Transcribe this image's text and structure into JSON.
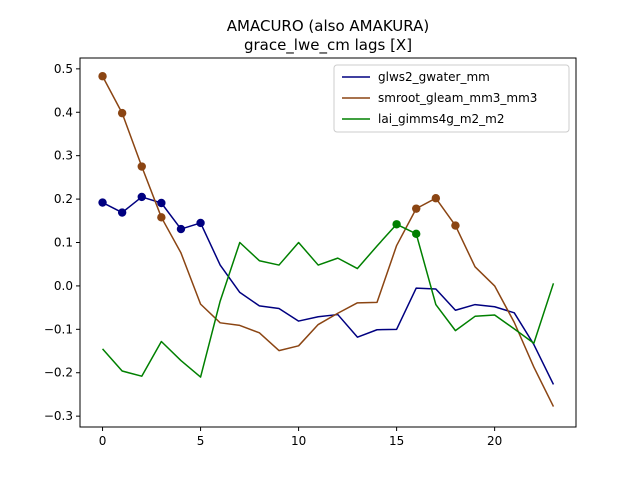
{
  "chart_data": {
    "type": "line",
    "title": "AMACURO (also AMAKURA)",
    "subtitle": "grace_lwe_cm lags [X]",
    "xlabel": "",
    "ylabel": "",
    "xlim": [
      -1.15,
      24.15
    ],
    "ylim": [
      -0.325,
      0.525
    ],
    "x_ticks": [
      0,
      5,
      10,
      15,
      20
    ],
    "y_ticks": [
      0.5,
      0.4,
      0.3,
      0.2,
      0.1,
      0.0,
      -0.1,
      -0.2,
      -0.3
    ],
    "x_tick_labels": [
      "0",
      "5",
      "10",
      "15",
      "20"
    ],
    "y_tick_labels": [
      "0.5",
      "0.4",
      "0.3",
      "0.2",
      "0.1",
      "0.0",
      "−0.1",
      "−0.2",
      "−0.3"
    ],
    "grid": false,
    "legend_position": "top-right",
    "x": [
      0,
      1,
      2,
      3,
      4,
      5,
      6,
      7,
      8,
      9,
      10,
      11,
      12,
      13,
      14,
      15,
      16,
      17,
      18,
      19,
      20,
      21,
      22,
      23
    ],
    "series": [
      {
        "name": "glws2_gwater_mm",
        "color": "#000080",
        "values": [
          0.192,
          0.169,
          0.205,
          0.191,
          0.131,
          0.145,
          0.048,
          -0.015,
          -0.046,
          -0.052,
          -0.081,
          -0.071,
          -0.066,
          -0.118,
          -0.101,
          -0.1,
          -0.005,
          -0.007,
          -0.056,
          -0.043,
          -0.048,
          -0.062,
          -0.135,
          -0.227
        ],
        "markers": [
          0,
          1,
          2,
          3,
          4,
          5
        ]
      },
      {
        "name": "smroot_gleam_mm3_mm3",
        "color": "#8B4513",
        "values": [
          0.483,
          0.398,
          0.275,
          0.158,
          0.076,
          -0.042,
          -0.085,
          -0.091,
          -0.108,
          -0.149,
          -0.138,
          -0.089,
          -0.063,
          -0.039,
          -0.038,
          0.093,
          0.178,
          0.202,
          0.139,
          0.044,
          0.0,
          -0.084,
          -0.187,
          -0.278
        ],
        "markers": [
          0,
          1,
          2,
          3,
          16,
          17,
          18
        ]
      },
      {
        "name": "lai_gimms4g_m2_m2",
        "color": "#008000",
        "values": [
          -0.145,
          -0.196,
          -0.208,
          -0.128,
          -0.172,
          -0.21,
          -0.035,
          0.1,
          0.058,
          0.048,
          0.1,
          0.048,
          0.064,
          0.04,
          0.092,
          0.142,
          0.12,
          -0.043,
          -0.103,
          -0.07,
          -0.067,
          -0.099,
          -0.132,
          0.006
        ],
        "markers": [
          15,
          16
        ]
      }
    ]
  }
}
